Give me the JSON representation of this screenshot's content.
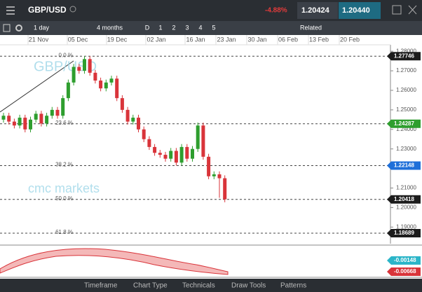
{
  "header": {
    "symbol": "GBP/USD",
    "change": "-4.88%",
    "sell": "1.20424",
    "buy": "1.20440"
  },
  "toolbar": {
    "interval": "1 day",
    "range": "4 months",
    "items": [
      "D",
      "1",
      "2",
      "3",
      "4",
      "5"
    ],
    "related": "Related"
  },
  "chart": {
    "dates": [
      "21 Nov",
      "05 Dec",
      "19 Dec",
      "02 Jan",
      "16 Jan",
      "23 Jan",
      "30 Jan",
      "06 Feb",
      "13 Feb",
      "20 Feb"
    ],
    "watermark": "GBP/USD",
    "brand": "cmc markets",
    "ylim": [
      1.1815,
      1.2833
    ],
    "yticks": [
      {
        "value": 1.28,
        "label": "1.28000"
      },
      {
        "value": 1.27,
        "label": "1.27000"
      },
      {
        "value": 1.26,
        "label": "1.26000"
      },
      {
        "value": 1.25,
        "label": "1.25000"
      },
      {
        "value": 1.24,
        "label": "1.24000"
      },
      {
        "value": 1.23,
        "label": "1.23000"
      },
      {
        "value": 1.22,
        "label": "1.22000"
      },
      {
        "value": 1.21,
        "label": "1.21000"
      },
      {
        "value": 1.2,
        "label": "1.20000"
      },
      {
        "value": 1.19,
        "label": "1.19000"
      }
    ],
    "fib_levels": [
      {
        "value": 1.27746,
        "label": "0.0 %"
      },
      {
        "value": 1.24287,
        "label": "23.6 %"
      },
      {
        "value": 1.22148,
        "label": "38.2 %"
      },
      {
        "value": 1.20418,
        "label": "50.0 %"
      },
      {
        "value": 1.18689,
        "label": "61.8 %"
      }
    ],
    "price_labels": [
      {
        "value": 1.27746,
        "label": "1.27746",
        "color": "#1c1c1c"
      },
      {
        "value": 1.24287,
        "label": "1.24287",
        "color": "#2e9e2e"
      },
      {
        "value": 1.22148,
        "label": "1.22148",
        "color": "#1e6fd9"
      },
      {
        "value": 1.20418,
        "label": "1.20418",
        "color": "#1c1c1c"
      },
      {
        "value": 1.18689,
        "label": "1.18689",
        "color": "#1c1c1c"
      }
    ],
    "open": [
      1.245,
      1.247,
      1.244,
      1.242,
      1.246,
      1.24,
      1.245,
      1.248,
      1.243,
      1.247,
      1.25,
      1.247,
      1.256,
      1.264,
      1.272,
      1.27,
      1.276,
      1.269,
      1.265,
      1.261,
      1.264,
      1.266,
      1.256,
      1.25,
      1.244,
      1.246,
      1.24,
      1.235,
      1.231,
      1.228,
      1.227,
      1.225,
      1.229,
      1.223,
      1.231,
      1.225,
      1.23,
      1.242,
      1.226,
      1.216,
      1.217,
      1.215
    ],
    "high": [
      1.2485,
      1.2485,
      1.2455,
      1.2475,
      1.2475,
      1.2465,
      1.2495,
      1.2495,
      1.2485,
      1.2515,
      1.2515,
      1.2575,
      1.2655,
      1.2735,
      1.2735,
      1.2775,
      1.2775,
      1.2705,
      1.2665,
      1.2655,
      1.2675,
      1.2675,
      1.2575,
      1.2515,
      1.2475,
      1.2475,
      1.2415,
      1.2365,
      1.2325,
      1.2295,
      1.2285,
      1.2305,
      1.2305,
      1.2325,
      1.2325,
      1.2315,
      1.2435,
      1.2435,
      1.2275,
      1.2185,
      1.2185,
      1.2165
    ],
    "low": [
      1.2435,
      1.2425,
      1.2405,
      1.2405,
      1.2385,
      1.2385,
      1.2435,
      1.2415,
      1.2415,
      1.2455,
      1.2455,
      1.2455,
      1.2545,
      1.2625,
      1.2685,
      1.2685,
      1.2675,
      1.2635,
      1.2595,
      1.2595,
      1.2625,
      1.2545,
      1.2485,
      1.2425,
      1.2425,
      1.2385,
      1.2335,
      1.2295,
      1.2265,
      1.2255,
      1.2235,
      1.2235,
      1.2215,
      1.2215,
      1.2235,
      1.2235,
      1.2285,
      1.2245,
      1.2145,
      1.2145,
      1.205,
      1.2027
    ],
    "close": [
      1.247,
      1.244,
      1.242,
      1.246,
      1.24,
      1.245,
      1.248,
      1.243,
      1.247,
      1.25,
      1.247,
      1.256,
      1.264,
      1.272,
      1.27,
      1.276,
      1.269,
      1.265,
      1.261,
      1.264,
      1.266,
      1.256,
      1.25,
      1.244,
      1.246,
      1.24,
      1.235,
      1.231,
      1.228,
      1.227,
      1.225,
      1.229,
      1.223,
      1.231,
      1.225,
      1.23,
      1.242,
      1.226,
      1.216,
      1.217,
      1.215,
      1.2042
    ]
  },
  "indicator": {
    "labels": [
      {
        "label": "-0.00148",
        "color": "#2bb5c8"
      },
      {
        "label": "-0.00668",
        "color": "#d9343a"
      }
    ]
  },
  "footer": {
    "tabs": [
      "Timeframe",
      "Chart Type",
      "Technicals",
      "Draw Tools",
      "Patterns"
    ]
  }
}
